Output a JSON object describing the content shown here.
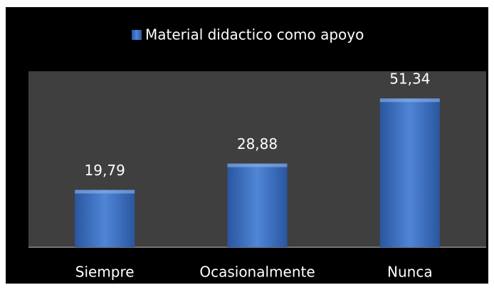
{
  "chart_data": {
    "type": "bar",
    "categories": [
      "Siempre",
      "Ocasionalmente",
      "Nunca"
    ],
    "series": [
      {
        "name": "Material didactico como apoyo",
        "color": "#3a6fc0",
        "values": [
          19.79,
          28.88,
          51.34
        ],
        "value_labels": [
          "19,79",
          "28,88",
          "51,34"
        ]
      }
    ],
    "ylim": [
      0,
      60
    ]
  }
}
